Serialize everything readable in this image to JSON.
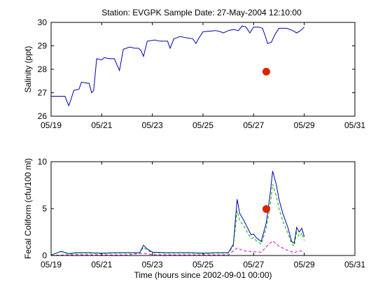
{
  "chart_data": [
    {
      "type": "line",
      "title": "Station: EVGPK  Sample Date: 27-May-2004 12:10:00",
      "xlabel": "",
      "ylabel": "Salinity (ppt)",
      "xlim": [
        0,
        12
      ],
      "ylim": [
        26,
        30
      ],
      "xtick_values": [
        0,
        2,
        4,
        6,
        8,
        10,
        12
      ],
      "xtick_labels": [
        "05/19",
        "05/21",
        "05/23",
        "05/25",
        "05/27",
        "05/29",
        "05/31"
      ],
      "ytick_values": [
        26,
        27,
        28,
        29,
        30
      ],
      "ytick_labels": [
        "26",
        "27",
        "28",
        "29",
        "30"
      ],
      "grid": false,
      "series": [
        {
          "color": "#0000aa",
          "style": "solid",
          "points": [
            [
              0.0,
              26.85
            ],
            [
              0.55,
              26.85
            ],
            [
              0.62,
              26.65
            ],
            [
              0.7,
              26.45
            ],
            [
              0.78,
              26.7
            ],
            [
              0.9,
              27.1
            ],
            [
              1.1,
              27.15
            ],
            [
              1.2,
              27.45
            ],
            [
              1.5,
              27.4
            ],
            [
              1.6,
              27.0
            ],
            [
              1.68,
              27.1
            ],
            [
              1.8,
              28.45
            ],
            [
              2.0,
              28.4
            ],
            [
              2.1,
              28.5
            ],
            [
              2.3,
              28.45
            ],
            [
              2.5,
              28.45
            ],
            [
              2.6,
              28.2
            ],
            [
              2.7,
              27.95
            ],
            [
              2.85,
              28.85
            ],
            [
              3.1,
              28.95
            ],
            [
              3.3,
              28.9
            ],
            [
              3.45,
              28.9
            ],
            [
              3.55,
              28.8
            ],
            [
              3.65,
              28.55
            ],
            [
              3.8,
              29.2
            ],
            [
              4.1,
              29.25
            ],
            [
              4.3,
              29.2
            ],
            [
              4.6,
              29.2
            ],
            [
              4.7,
              28.9
            ],
            [
              4.85,
              29.3
            ],
            [
              5.1,
              29.4
            ],
            [
              5.3,
              29.35
            ],
            [
              5.6,
              29.3
            ],
            [
              5.72,
              29.1
            ],
            [
              5.82,
              29.3
            ],
            [
              6.0,
              29.6
            ],
            [
              6.5,
              29.65
            ],
            [
              6.7,
              29.6
            ],
            [
              6.8,
              29.55
            ],
            [
              6.9,
              29.6
            ],
            [
              7.0,
              29.65
            ],
            [
              7.2,
              29.7
            ],
            [
              7.4,
              29.65
            ],
            [
              7.55,
              29.85
            ],
            [
              7.7,
              29.8
            ],
            [
              7.85,
              29.55
            ],
            [
              8.0,
              29.8
            ],
            [
              8.2,
              29.8
            ],
            [
              8.35,
              29.75
            ],
            [
              8.45,
              29.45
            ],
            [
              8.55,
              29.1
            ],
            [
              8.7,
              29.15
            ],
            [
              8.85,
              29.5
            ],
            [
              9.0,
              29.75
            ],
            [
              9.3,
              29.75
            ],
            [
              9.55,
              29.65
            ],
            [
              9.7,
              29.55
            ],
            [
              9.85,
              29.65
            ],
            [
              10.0,
              29.8
            ]
          ]
        },
        {
          "type": "scatter",
          "color": "#dd2200",
          "points": [
            [
              8.5,
              27.9
            ]
          ]
        }
      ]
    },
    {
      "type": "line",
      "title": "",
      "xlabel": "Time (hours since 2002-09-01 00:00)",
      "ylabel": "Fecal Coliform (cfu/100 ml)",
      "xlim": [
        0,
        12
      ],
      "ylim": [
        0,
        10
      ],
      "xtick_values": [
        0,
        2,
        4,
        6,
        8,
        10,
        12
      ],
      "xtick_labels": [
        "05/19",
        "05/21",
        "05/23",
        "05/25",
        "05/27",
        "05/29",
        "05/31"
      ],
      "ytick_values": [
        0,
        5,
        10
      ],
      "ytick_labels": [
        "0",
        "5",
        "10"
      ],
      "grid": false,
      "series": [
        {
          "color": "#0000aa",
          "style": "solid",
          "points": [
            [
              0.0,
              0.05
            ],
            [
              0.4,
              0.45
            ],
            [
              0.7,
              0.2
            ],
            [
              1.0,
              0.3
            ],
            [
              1.5,
              0.3
            ],
            [
              2.0,
              0.25
            ],
            [
              2.5,
              0.3
            ],
            [
              3.0,
              0.3
            ],
            [
              3.5,
              0.3
            ],
            [
              3.65,
              1.1
            ],
            [
              3.8,
              0.7
            ],
            [
              4.0,
              0.35
            ],
            [
              4.5,
              0.3
            ],
            [
              5.0,
              0.3
            ],
            [
              5.5,
              0.3
            ],
            [
              6.0,
              0.25
            ],
            [
              6.5,
              0.3
            ],
            [
              7.0,
              0.3
            ],
            [
              7.2,
              1.2
            ],
            [
              7.35,
              6.0
            ],
            [
              7.45,
              4.5
            ],
            [
              7.6,
              3.8
            ],
            [
              7.75,
              3.0
            ],
            [
              7.9,
              2.2
            ],
            [
              8.0,
              2.3
            ],
            [
              8.1,
              1.9
            ],
            [
              8.3,
              1.5
            ],
            [
              8.5,
              3.5
            ],
            [
              8.65,
              6.5
            ],
            [
              8.75,
              9.0
            ],
            [
              8.9,
              7.5
            ],
            [
              9.0,
              6.0
            ],
            [
              9.15,
              4.5
            ],
            [
              9.35,
              3.0
            ],
            [
              9.5,
              1.5
            ],
            [
              9.6,
              1.3
            ],
            [
              9.7,
              3.0
            ],
            [
              9.8,
              2.5
            ],
            [
              9.9,
              2.9
            ],
            [
              10.0,
              2.0
            ]
          ]
        },
        {
          "color": "#00aa00",
          "style": "dashed",
          "points": [
            [
              0.0,
              0.05
            ],
            [
              0.4,
              0.4
            ],
            [
              0.7,
              0.15
            ],
            [
              1.0,
              0.25
            ],
            [
              1.5,
              0.25
            ],
            [
              2.0,
              0.2
            ],
            [
              2.5,
              0.25
            ],
            [
              3.0,
              0.25
            ],
            [
              3.5,
              0.25
            ],
            [
              3.65,
              0.9
            ],
            [
              3.8,
              0.55
            ],
            [
              4.0,
              0.3
            ],
            [
              4.5,
              0.25
            ],
            [
              5.0,
              0.25
            ],
            [
              5.5,
              0.25
            ],
            [
              6.0,
              0.2
            ],
            [
              6.5,
              0.25
            ],
            [
              7.0,
              0.25
            ],
            [
              7.2,
              1.0
            ],
            [
              7.35,
              4.8
            ],
            [
              7.45,
              3.7
            ],
            [
              7.6,
              3.2
            ],
            [
              7.75,
              2.5
            ],
            [
              7.9,
              1.8
            ],
            [
              8.0,
              1.9
            ],
            [
              8.1,
              1.6
            ],
            [
              8.3,
              1.2
            ],
            [
              8.5,
              2.9
            ],
            [
              8.65,
              5.3
            ],
            [
              8.75,
              7.6
            ],
            [
              8.9,
              6.3
            ],
            [
              9.0,
              5.0
            ],
            [
              9.15,
              3.7
            ],
            [
              9.35,
              2.4
            ],
            [
              9.5,
              1.2
            ],
            [
              9.6,
              1.0
            ],
            [
              9.7,
              2.5
            ],
            [
              9.8,
              2.0
            ],
            [
              9.9,
              2.4
            ],
            [
              10.0,
              1.6
            ]
          ]
        },
        {
          "color": "#cc00cc",
          "style": "dashed",
          "points": [
            [
              0.0,
              0.02
            ],
            [
              1.0,
              0.08
            ],
            [
              2.0,
              0.06
            ],
            [
              3.0,
              0.06
            ],
            [
              3.65,
              0.25
            ],
            [
              4.0,
              0.08
            ],
            [
              5.0,
              0.07
            ],
            [
              6.0,
              0.06
            ],
            [
              7.0,
              0.07
            ],
            [
              7.35,
              0.8
            ],
            [
              7.6,
              0.5
            ],
            [
              8.0,
              0.4
            ],
            [
              8.3,
              0.35
            ],
            [
              8.6,
              1.2
            ],
            [
              8.75,
              1.55
            ],
            [
              9.0,
              1.0
            ],
            [
              9.3,
              0.6
            ],
            [
              9.6,
              0.3
            ],
            [
              9.8,
              0.5
            ],
            [
              10.0,
              0.4
            ]
          ]
        },
        {
          "type": "scatter",
          "color": "#dd2200",
          "points": [
            [
              8.5,
              4.95
            ]
          ]
        }
      ]
    }
  ]
}
